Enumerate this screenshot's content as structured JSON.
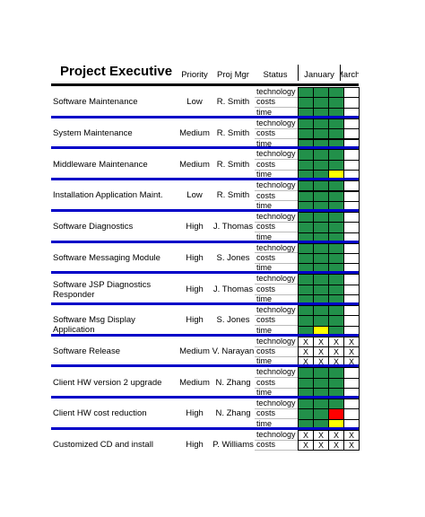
{
  "header": {
    "title": "Project Executive",
    "columns": [
      "Priority",
      "Proj Mgr",
      "Status",
      "January",
      "March"
    ]
  },
  "rows": [
    {
      "name": "Software Maintenance",
      "priority": "Low",
      "manager": "R. Smith",
      "status": [
        {
          "label": "technology",
          "cells": [
            "#22904a",
            "#22904a",
            "#22904a",
            null
          ]
        },
        {
          "label": "costs",
          "cells": [
            "#22904a",
            "#22904a",
            "#22904a",
            null
          ]
        },
        {
          "label": "time",
          "cells": [
            "#22904a",
            "#22904a",
            "#22904a",
            null
          ]
        }
      ]
    },
    {
      "name": "System Maintenance",
      "priority": "Medium",
      "manager": "R. Smith",
      "status": [
        {
          "label": "technology",
          "cells": [
            "#22904a",
            "#22904a",
            "#22904a",
            null
          ]
        },
        {
          "label": "costs",
          "cells": [
            "#22904a",
            "#22904a",
            "#22904a",
            null
          ]
        },
        {
          "label": "time",
          "cells": [
            "#22904a",
            "#22904a",
            "#22904a",
            null
          ]
        }
      ]
    },
    {
      "name": "Middleware Maintenance",
      "priority": "Medium",
      "manager": "R. Smith",
      "status": [
        {
          "label": "technology",
          "cells": [
            "#22904a",
            "#22904a",
            "#22904a",
            null
          ]
        },
        {
          "label": "costs",
          "cells": [
            "#22904a",
            "#22904a",
            "#22904a",
            null
          ]
        },
        {
          "label": "time",
          "cells": [
            "#22904a",
            "#22904a",
            "#ffff00",
            null
          ]
        }
      ]
    },
    {
      "name": "Installation Application Maint.",
      "priority": "Low",
      "manager": "R. Smith",
      "status": [
        {
          "label": "technology",
          "cells": [
            "#22904a",
            "#22904a",
            "#22904a",
            null
          ]
        },
        {
          "label": "costs",
          "cells": [
            "#22904a",
            "#22904a",
            "#22904a",
            null
          ]
        },
        {
          "label": "time",
          "cells": [
            "#22904a",
            "#22904a",
            "#22904a",
            null
          ]
        }
      ]
    },
    {
      "name": "Software Diagnostics",
      "priority": "High",
      "manager": "J. Thomas",
      "status": [
        {
          "label": "technology",
          "cells": [
            "#22904a",
            "#22904a",
            "#22904a",
            null
          ]
        },
        {
          "label": "costs",
          "cells": [
            "#22904a",
            "#22904a",
            "#22904a",
            null
          ]
        },
        {
          "label": "time",
          "cells": [
            "#22904a",
            "#22904a",
            "#22904a",
            null
          ]
        }
      ]
    },
    {
      "name": "Software Messaging Module",
      "priority": "High",
      "manager": "S. Jones",
      "status": [
        {
          "label": "technology",
          "cells": [
            "#22904a",
            "#22904a",
            "#22904a",
            null
          ]
        },
        {
          "label": "costs",
          "cells": [
            "#22904a",
            "#22904a",
            "#22904a",
            null
          ]
        },
        {
          "label": "time",
          "cells": [
            "#22904a",
            "#22904a",
            "#22904a",
            null
          ]
        }
      ]
    },
    {
      "name": "Software JSP Diagnostics Responder",
      "priority": "High",
      "manager": "J. Thomas",
      "status": [
        {
          "label": "technology",
          "cells": [
            "#22904a",
            "#22904a",
            "#22904a",
            null
          ]
        },
        {
          "label": "costs",
          "cells": [
            "#22904a",
            "#22904a",
            "#22904a",
            null
          ]
        },
        {
          "label": "time",
          "cells": [
            "#22904a",
            "#22904a",
            "#22904a",
            null
          ]
        }
      ]
    },
    {
      "name": "Software Msg Display Application",
      "priority": "High",
      "manager": "S. Jones",
      "status": [
        {
          "label": "technology",
          "cells": [
            "#22904a",
            "#22904a",
            "#22904a",
            null
          ]
        },
        {
          "label": "costs",
          "cells": [
            "#22904a",
            "#22904a",
            "#22904a",
            null
          ]
        },
        {
          "label": "time",
          "cells": [
            "#22904a",
            "#ffff00",
            "#22904a",
            null
          ]
        }
      ]
    },
    {
      "name": "Software Release",
      "priority": "Medium",
      "manager": "V. Narayan",
      "status": [
        {
          "label": "technology",
          "cells": [
            "X",
            "X",
            "X",
            "X"
          ]
        },
        {
          "label": "costs",
          "cells": [
            "X",
            "X",
            "X",
            "X"
          ]
        },
        {
          "label": "time",
          "cells": [
            "X",
            "X",
            "X",
            "X"
          ]
        }
      ]
    },
    {
      "name": "Client HW version 2 upgrade",
      "priority": "Medium",
      "manager": "N. Zhang",
      "status": [
        {
          "label": "technology",
          "cells": [
            "#22904a",
            "#22904a",
            "#22904a",
            null
          ]
        },
        {
          "label": "costs",
          "cells": [
            "#22904a",
            "#22904a",
            "#22904a",
            null
          ]
        },
        {
          "label": "time",
          "cells": [
            "#22904a",
            "#22904a",
            "#22904a",
            null
          ]
        }
      ]
    },
    {
      "name": "Client HW cost reduction",
      "priority": "High",
      "manager": "N. Zhang",
      "status": [
        {
          "label": "technology",
          "cells": [
            "#22904a",
            "#22904a",
            "#22904a",
            null
          ]
        },
        {
          "label": "costs",
          "cells": [
            "#22904a",
            "#22904a",
            "#ff0000",
            null
          ]
        },
        {
          "label": "time",
          "cells": [
            "#22904a",
            "#22904a",
            "#ffff00",
            null
          ]
        }
      ]
    },
    {
      "name": "Customized CD and install",
      "priority": "High",
      "manager": "P. Williams",
      "status": [
        {
          "label": "technology",
          "cells": [
            "X",
            "X",
            "X",
            "X"
          ]
        },
        {
          "label": "costs",
          "cells": [
            "X",
            "X",
            "X",
            "X"
          ]
        }
      ]
    }
  ]
}
